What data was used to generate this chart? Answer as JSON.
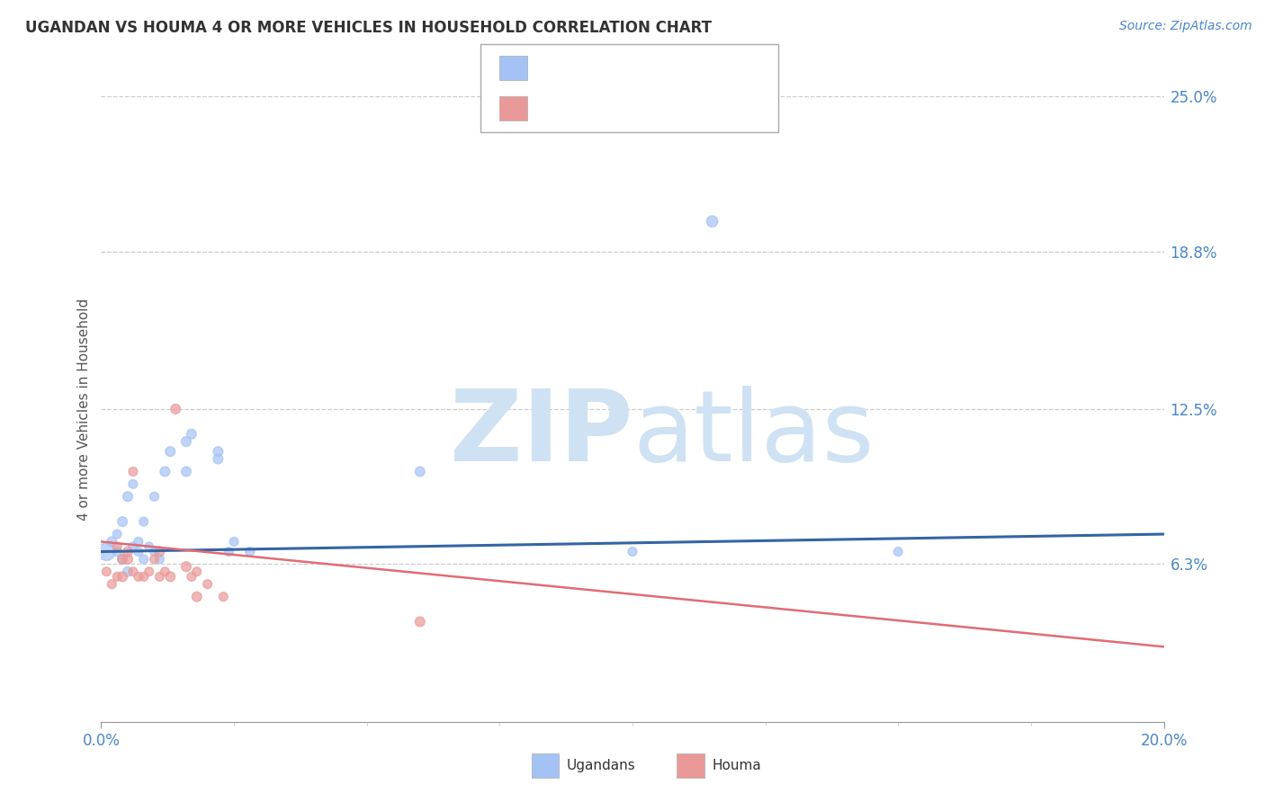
{
  "title": "UGANDAN VS HOUMA 4 OR MORE VEHICLES IN HOUSEHOLD CORRELATION CHART",
  "source_text": "Source: ZipAtlas.com",
  "ylabel": "4 or more Vehicles in Household",
  "xlim": [
    0.0,
    0.2
  ],
  "ylim": [
    0.0,
    0.25
  ],
  "ytick_labels_right": [
    "6.3%",
    "12.5%",
    "18.8%",
    "25.0%"
  ],
  "ytick_values_right": [
    0.063,
    0.125,
    0.188,
    0.25
  ],
  "gridline_y": [
    0.063,
    0.125,
    0.188,
    0.25
  ],
  "ugandan_color": "#a4c2f4",
  "houma_color": "#ea9999",
  "trend_blue": "#3465a4",
  "trend_pink": "#e06c75",
  "watermark_zip": "ZIP",
  "watermark_atlas": "atlas",
  "watermark_color": "#cfe2f3",
  "tick_color": "#4a86c8",
  "title_color": "#333333",
  "ugandan_x": [
    0.001,
    0.002,
    0.003,
    0.003,
    0.004,
    0.004,
    0.005,
    0.005,
    0.006,
    0.006,
    0.007,
    0.007,
    0.008,
    0.008,
    0.009,
    0.01,
    0.01,
    0.011,
    0.012,
    0.013,
    0.016,
    0.016,
    0.017,
    0.022,
    0.022,
    0.024,
    0.025,
    0.028,
    0.06,
    0.1,
    0.115,
    0.15
  ],
  "ugandan_y": [
    0.068,
    0.072,
    0.068,
    0.075,
    0.065,
    0.08,
    0.06,
    0.09,
    0.07,
    0.095,
    0.068,
    0.072,
    0.065,
    0.08,
    0.07,
    0.068,
    0.09,
    0.065,
    0.1,
    0.108,
    0.1,
    0.112,
    0.115,
    0.105,
    0.108,
    0.068,
    0.072,
    0.068,
    0.1,
    0.068,
    0.2,
    0.068
  ],
  "ugandan_sizes": [
    200,
    60,
    50,
    50,
    60,
    60,
    60,
    60,
    50,
    50,
    50,
    50,
    50,
    50,
    50,
    50,
    50,
    50,
    60,
    60,
    60,
    60,
    60,
    60,
    60,
    50,
    50,
    50,
    60,
    50,
    80,
    50
  ],
  "houma_x": [
    0.001,
    0.002,
    0.003,
    0.003,
    0.004,
    0.004,
    0.005,
    0.005,
    0.006,
    0.006,
    0.007,
    0.008,
    0.009,
    0.01,
    0.011,
    0.011,
    0.012,
    0.013,
    0.014,
    0.016,
    0.017,
    0.018,
    0.018,
    0.02,
    0.023,
    0.06
  ],
  "houma_y": [
    0.06,
    0.055,
    0.058,
    0.07,
    0.065,
    0.058,
    0.068,
    0.065,
    0.06,
    0.1,
    0.058,
    0.058,
    0.06,
    0.065,
    0.058,
    0.068,
    0.06,
    0.058,
    0.125,
    0.062,
    0.058,
    0.06,
    0.05,
    0.055,
    0.05,
    0.04
  ],
  "houma_sizes": [
    50,
    50,
    50,
    50,
    60,
    60,
    60,
    60,
    50,
    50,
    50,
    50,
    50,
    50,
    50,
    60,
    50,
    60,
    60,
    60,
    50,
    50,
    60,
    50,
    50,
    60
  ],
  "blue_trend_x": [
    0.0,
    0.2
  ],
  "blue_trend_y": [
    0.068,
    0.075
  ],
  "pink_trend_x": [
    0.0,
    0.2
  ],
  "pink_trend_y": [
    0.072,
    0.03
  ],
  "title_fontsize": 12,
  "source_fontsize": 10
}
